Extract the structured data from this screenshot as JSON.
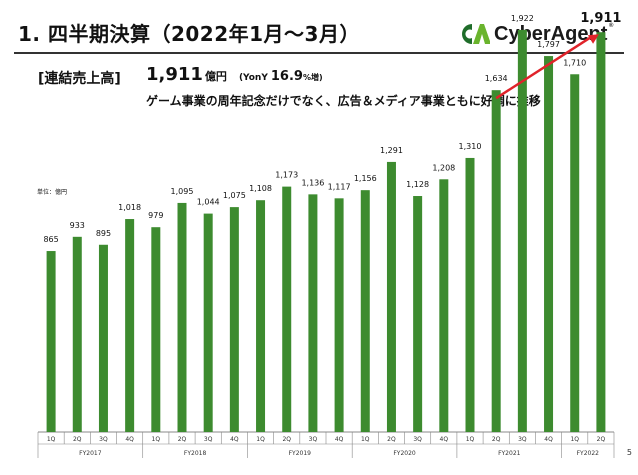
{
  "header": {
    "title": "1. 四半期決算（2022年1月〜3月）",
    "logo_text": "CyberAgent"
  },
  "headline": {
    "label": "[連結売上高]",
    "value": "1,911",
    "unit": "億円",
    "yoy_label": "(YonY",
    "yoy_value": "16.9",
    "yoy_unit": "%増)",
    "description": "ゲーム事業の周年記念だけでなく、広告＆メディア事業ともに好調に推移"
  },
  "unit_note": "単位：億円",
  "page_number": "5",
  "colors": {
    "bar": "#3d8b2f",
    "arrow": "#e0232a",
    "axis": "#888888",
    "logo_green": "#6ab42d",
    "logo_dark": "#1f6d2a"
  },
  "chart_data": {
    "type": "bar",
    "quarters": [
      "1Q",
      "2Q",
      "3Q",
      "4Q",
      "1Q",
      "2Q",
      "3Q",
      "4Q",
      "1Q",
      "2Q",
      "3Q",
      "4Q",
      "1Q",
      "2Q",
      "3Q",
      "4Q",
      "1Q",
      "2Q",
      "3Q",
      "4Q",
      "1Q",
      "2Q"
    ],
    "values": [
      865,
      933,
      895,
      1018,
      979,
      1095,
      1044,
      1075,
      1108,
      1173,
      1136,
      1117,
      1156,
      1291,
      1128,
      1208,
      1310,
      1634,
      1922,
      1797,
      1710,
      1911
    ],
    "value_labels": [
      "865",
      "933",
      "895",
      "1,018",
      "979",
      "1,095",
      "1,044",
      "1,075",
      "1,108",
      "1,173",
      "1,136",
      "1,117",
      "1,156",
      "1,291",
      "1,128",
      "1,208",
      "1,310",
      "1,634",
      "1,922",
      "1,797",
      "1,710",
      "1,911"
    ],
    "years": [
      {
        "label": "FY2017",
        "count": 4
      },
      {
        "label": "FY2018",
        "count": 4
      },
      {
        "label": "FY2019",
        "count": 4
      },
      {
        "label": "FY2020",
        "count": 4
      },
      {
        "label": "FY2021",
        "count": 4
      },
      {
        "label": "FY2022",
        "count": 2
      }
    ],
    "ylim": [
      0,
      2000
    ],
    "arrow": {
      "from_index": 17,
      "to_index": 21
    }
  }
}
